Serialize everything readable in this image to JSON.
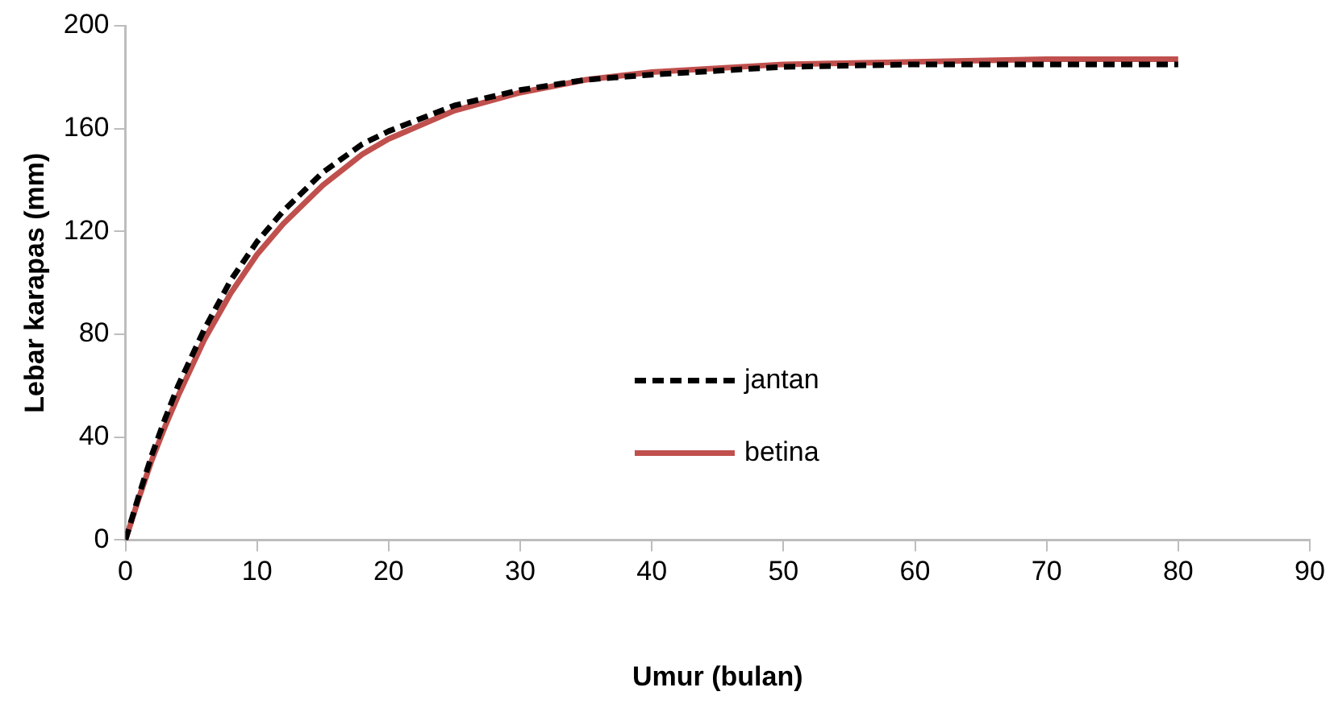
{
  "chart_data": {
    "type": "line",
    "xlabel": "Umur (bulan)",
    "ylabel": "Lebar karapas (mm)",
    "xlim": [
      0,
      90
    ],
    "xticks": [
      0,
      10,
      20,
      30,
      40,
      50,
      60,
      70,
      80,
      90
    ],
    "ylim": [
      0,
      200
    ],
    "yticks": [
      0,
      40,
      80,
      120,
      160,
      200
    ],
    "grid": false,
    "legend": "center",
    "marker": "none",
    "x": [
      0,
      1,
      2,
      3,
      4,
      6,
      8,
      10,
      12,
      15,
      18,
      20,
      25,
      30,
      35,
      40,
      50,
      60,
      70,
      80
    ],
    "series": [
      {
        "name": "jantan",
        "color": "#000000",
        "line_style": "dashed",
        "values": [
          0,
          17,
          33,
          47,
          60,
          82,
          101,
          116,
          128,
          143,
          154,
          159,
          169,
          175,
          179,
          181,
          184,
          185,
          185,
          185
        ]
      },
      {
        "name": "betina",
        "color": "#c0504d",
        "line_style": "solid",
        "values": [
          0,
          16,
          31,
          44,
          56,
          78,
          96,
          111,
          123,
          138,
          150,
          156,
          167,
          174,
          179,
          182,
          185,
          186,
          187,
          187
        ]
      }
    ]
  }
}
